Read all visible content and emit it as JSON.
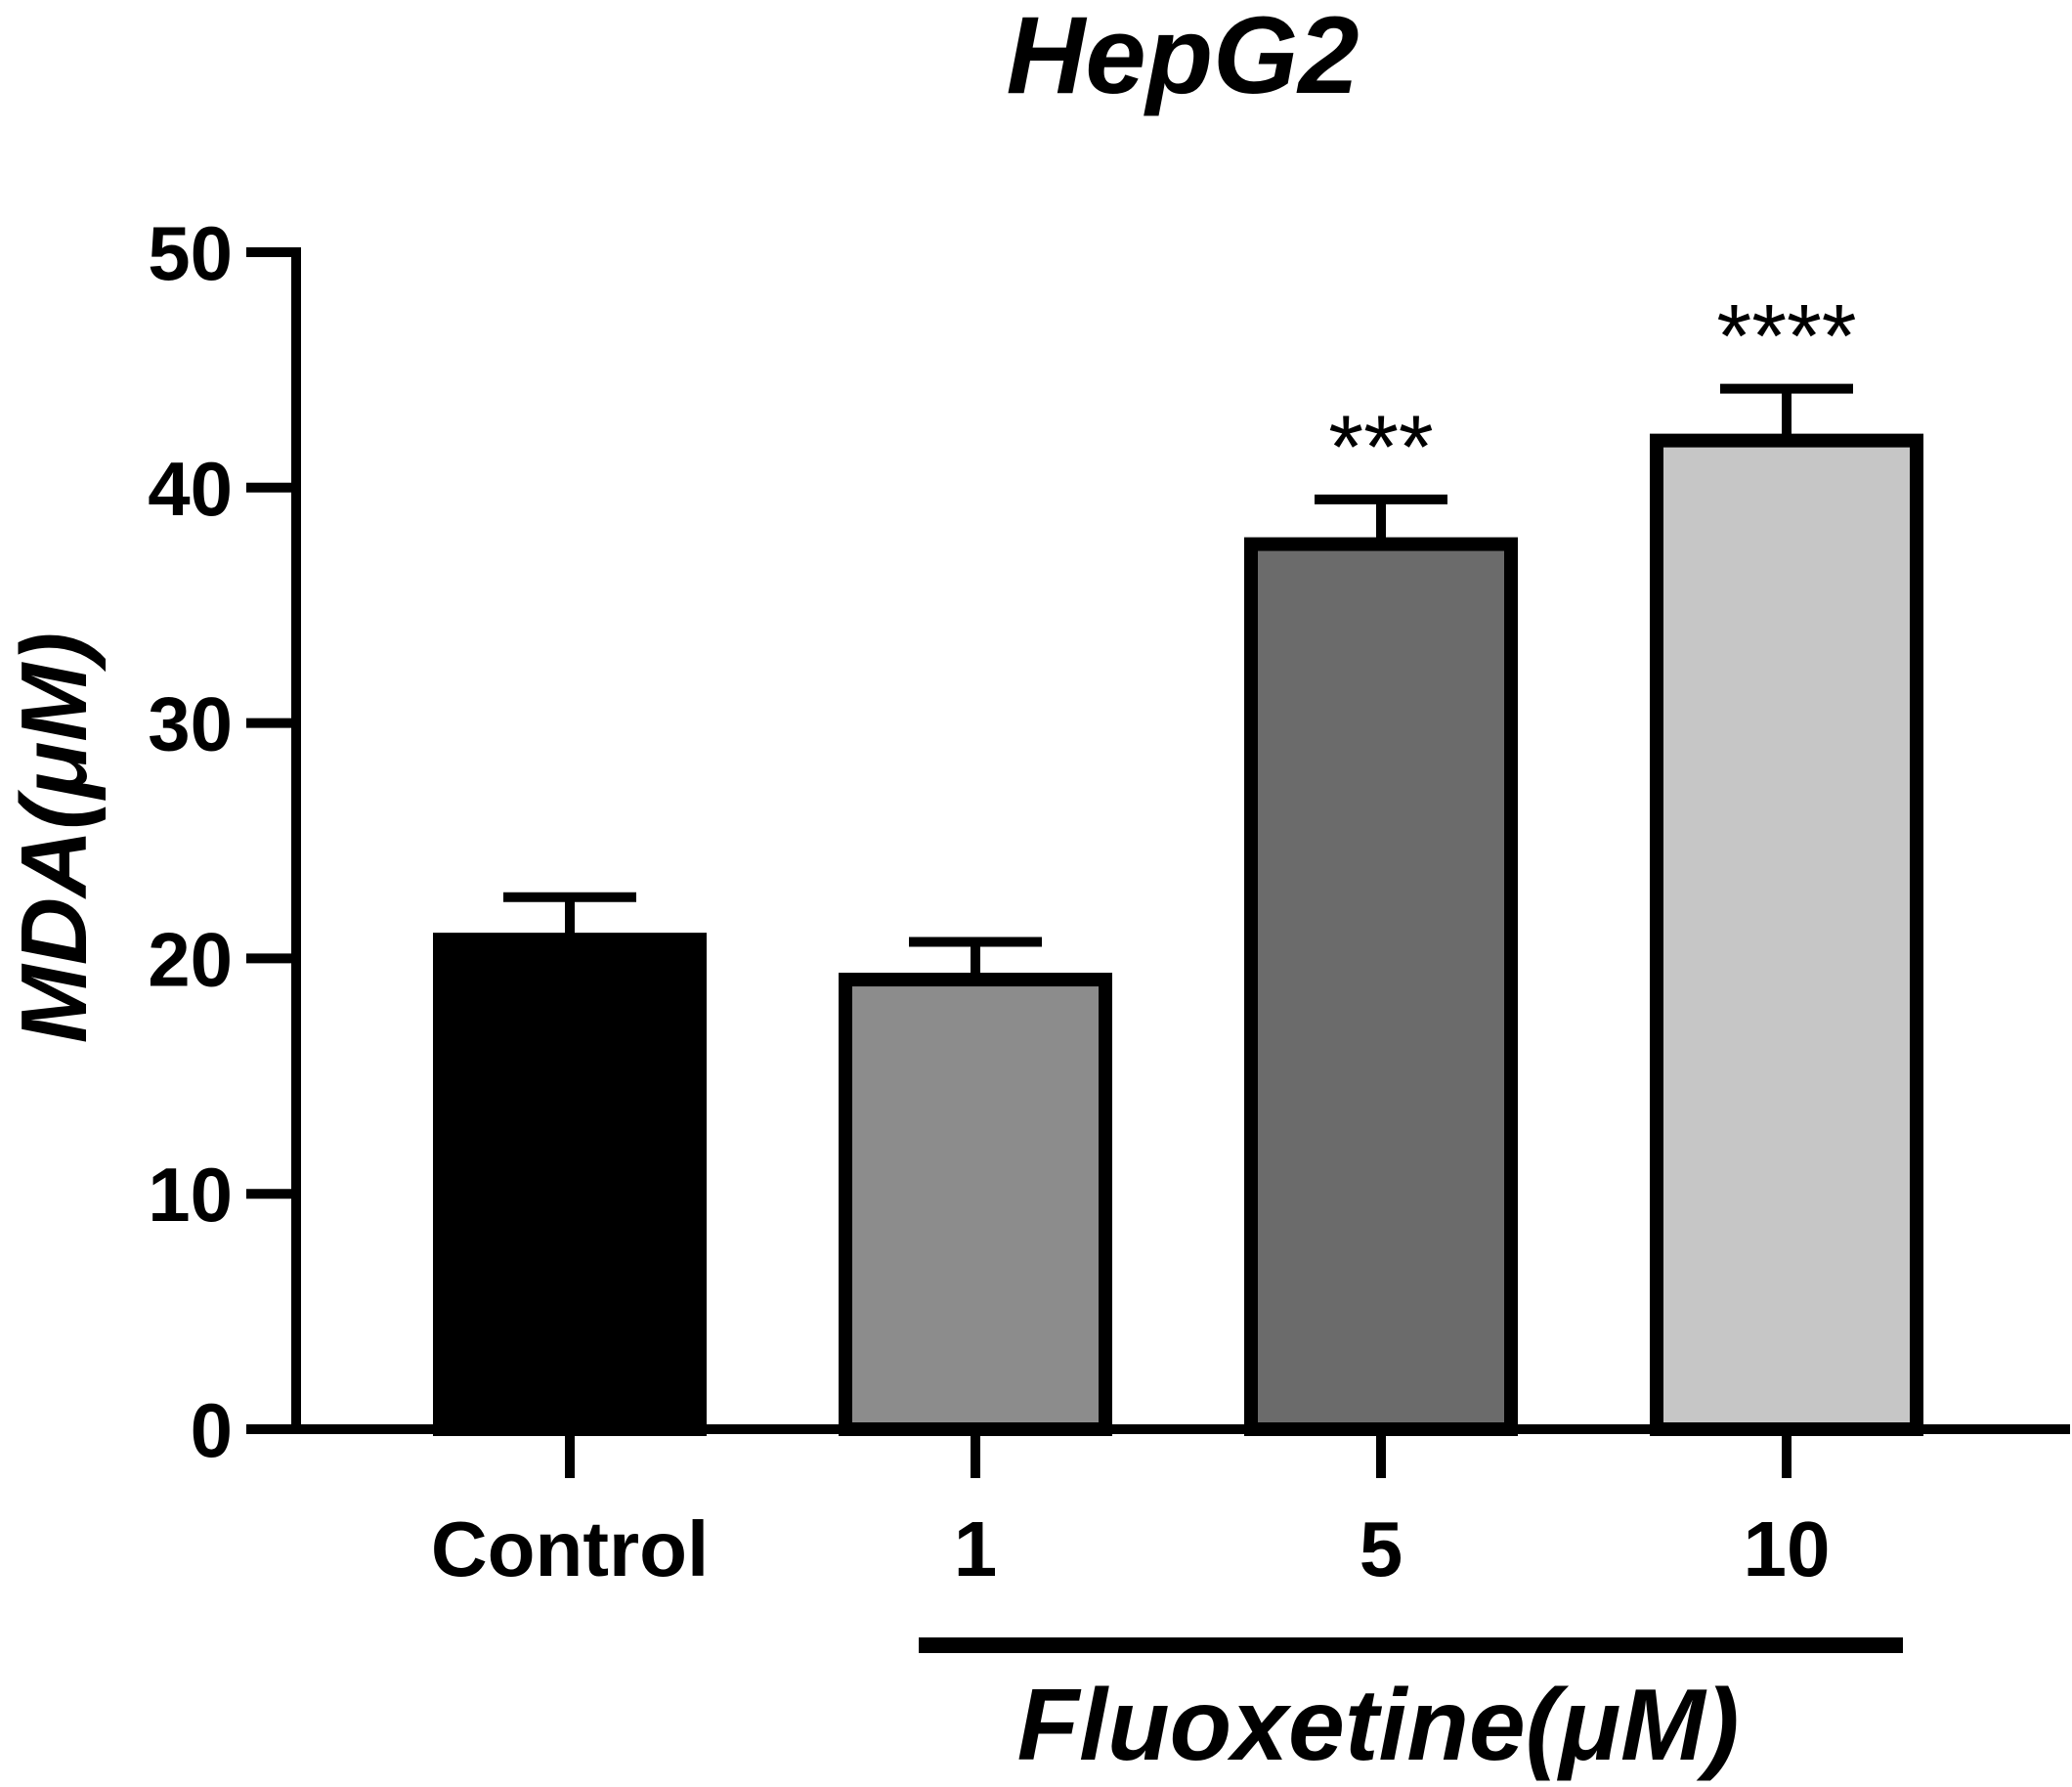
{
  "chart_data": {
    "type": "bar",
    "title": "HepG2",
    "ylabel": "MDA(μM)",
    "xgroup_label": "Fluoxetine(μM)",
    "categories": [
      "Control",
      "1",
      "5",
      "10"
    ],
    "values": [
      20.8,
      19.1,
      37.6,
      42.0
    ],
    "errors": [
      1.8,
      1.6,
      1.9,
      2.2
    ],
    "significance": [
      "",
      "",
      "***",
      "****"
    ],
    "colors": [
      "#000000",
      "#8c8c8c",
      "#6b6b6b",
      "#c6c6c6"
    ],
    "ylim": [
      0,
      50
    ],
    "yticks": [
      0,
      10,
      20,
      30,
      40,
      50
    ],
    "grid": false,
    "legend": "none"
  }
}
